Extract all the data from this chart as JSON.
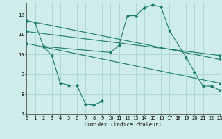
{
  "background_color": "#ceecea",
  "grid_color": "#aed8d4",
  "line_color": "#1a7a6e",
  "xlabel": "Humidex (Indice chaleur)",
  "xlim": [
    0,
    23
  ],
  "ylim": [
    7,
    12.6
  ],
  "yticks": [
    7,
    8,
    9,
    10,
    11,
    12
  ],
  "xticks": [
    0,
    1,
    2,
    3,
    4,
    5,
    6,
    7,
    8,
    9,
    10,
    11,
    12,
    13,
    14,
    15,
    16,
    17,
    18,
    19,
    20,
    21,
    22,
    23
  ],
  "series": [
    {
      "x": [
        0,
        1,
        2,
        10,
        11,
        12,
        13,
        14,
        15,
        16,
        17,
        19,
        20,
        21,
        22,
        23
      ],
      "y": [
        11.7,
        11.6,
        10.4,
        10.1,
        10.45,
        11.95,
        11.95,
        12.35,
        12.5,
        12.4,
        11.2,
        9.85,
        9.1,
        8.4,
        8.4,
        8.2
      ]
    },
    {
      "x": [
        0,
        23
      ],
      "y": [
        11.7,
        9.75
      ]
    },
    {
      "x": [
        0,
        23
      ],
      "y": [
        11.15,
        9.95
      ]
    },
    {
      "x": [
        0,
        23
      ],
      "y": [
        10.55,
        8.55
      ]
    },
    {
      "x": [
        2,
        3,
        4,
        5,
        6,
        7,
        8,
        9
      ],
      "y": [
        10.4,
        9.95,
        8.55,
        8.45,
        8.45,
        7.5,
        7.45,
        7.65
      ]
    }
  ]
}
